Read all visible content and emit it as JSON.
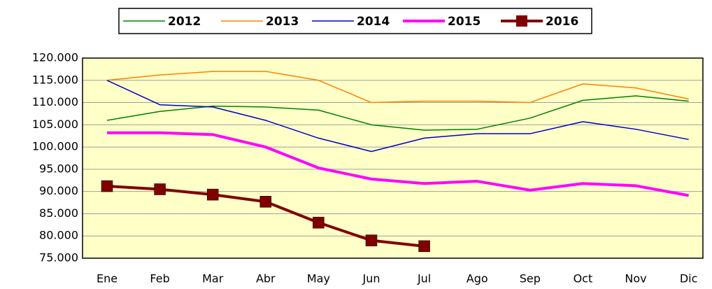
{
  "chart_data": {
    "type": "line",
    "categories": [
      "Ene",
      "Feb",
      "Mar",
      "Abr",
      "May",
      "Jun",
      "Jul",
      "Ago",
      "Sep",
      "Oct",
      "Nov",
      "Dic"
    ],
    "series": [
      {
        "name": "2012",
        "color": "#008000",
        "width": 1.5,
        "values": [
          106000,
          108000,
          109200,
          109000,
          108300,
          105000,
          103800,
          104000,
          106500,
          110500,
          111500,
          110300
        ]
      },
      {
        "name": "2013",
        "color": "#ff8000",
        "width": 1.5,
        "values": [
          115000,
          116200,
          117000,
          117000,
          115000,
          110000,
          110300,
          110300,
          110000,
          114200,
          113300,
          110800
        ]
      },
      {
        "name": "2014",
        "color": "#0000cc",
        "width": 1.5,
        "values": [
          115000,
          109500,
          109000,
          106000,
          102000,
          99000,
          102000,
          103000,
          103000,
          105700,
          104000,
          101700
        ]
      },
      {
        "name": "2015",
        "color": "#ff00ff",
        "width": 4,
        "values": [
          103200,
          103200,
          102800,
          100000,
          95300,
          92800,
          91800,
          92300,
          90300,
          91800,
          91300,
          89100
        ]
      },
      {
        "name": "2016",
        "color": "#800000",
        "width": 4,
        "marker": "square",
        "values": [
          91200,
          90500,
          89300,
          87700,
          83000,
          79000,
          77700,
          null,
          null,
          null,
          null,
          null
        ]
      }
    ],
    "ylim": [
      75000,
      120000
    ],
    "yticks": [
      {
        "value": 75000,
        "label": "75.000"
      },
      {
        "value": 80000,
        "label": "80.000"
      },
      {
        "value": 85000,
        "label": "85.000"
      },
      {
        "value": 90000,
        "label": "90.000"
      },
      {
        "value": 95000,
        "label": "95.000"
      },
      {
        "value": 100000,
        "label": "100.000"
      },
      {
        "value": 105000,
        "label": "105.000"
      },
      {
        "value": 110000,
        "label": "110.000"
      },
      {
        "value": 115000,
        "label": "115.000"
      },
      {
        "value": 120000,
        "label": "120.000"
      }
    ],
    "grid": true,
    "legend": "top"
  }
}
